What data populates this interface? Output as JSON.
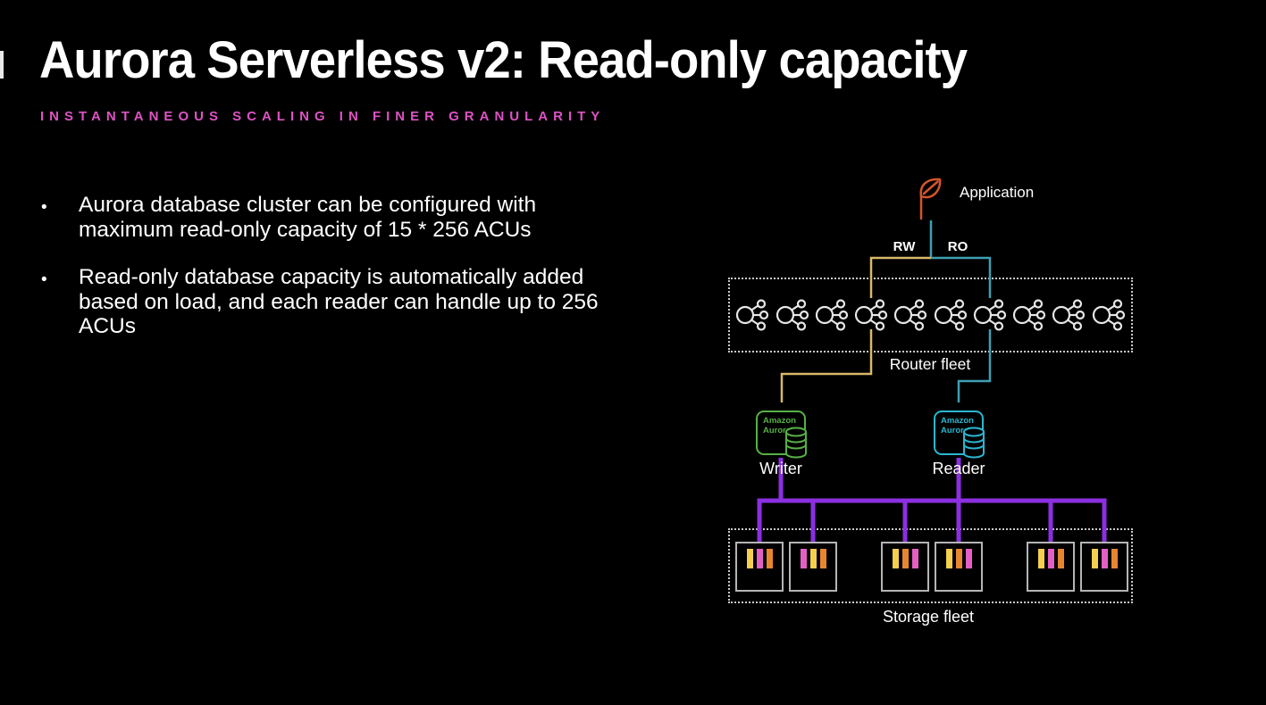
{
  "slide": {
    "title": "Aurora Serverless v2: Read-only capacity",
    "subtitle": "INSTANTANEOUS SCALING IN FINER GRANULARITY",
    "bullets": [
      "Aurora database cluster can be configured with maximum read-only capacity of 15 * 256 ACUs",
      "Read-only database capacity is automatically added based on load, and each reader can handle up to 256 ACUs"
    ],
    "bullet_marker": "•"
  },
  "diagram": {
    "application_label": "Application",
    "rw_label": "RW",
    "ro_label": "RO",
    "router_fleet": {
      "label": "Router fleet",
      "node_count": 10
    },
    "writer": {
      "icon_line1": "Amazon",
      "icon_line2": "Aurora",
      "label": "Writer"
    },
    "reader": {
      "icon_line1": "Amazon",
      "icon_line2": "Aurora",
      "label": "Reader"
    },
    "storage_fleet": {
      "label": "Storage fleet",
      "nodes": [
        {
          "bars": [
            "yellow",
            "pink",
            "orange"
          ]
        },
        {
          "bars": [
            "pink",
            "yellow",
            "orange"
          ]
        },
        {
          "bars": [
            "yellow",
            "orange",
            "pink"
          ]
        },
        {
          "bars": [
            "yellow",
            "orange",
            "pink"
          ]
        },
        {
          "bars": [
            "yellow",
            "pink",
            "orange"
          ]
        },
        {
          "bars": [
            "yellow",
            "pink",
            "orange"
          ]
        }
      ]
    },
    "colors": {
      "rw_wire": "#d8b86a",
      "ro_wire": "#3e9fb3",
      "storage_wire": "#8b2fe0",
      "writer_accent": "#57b046",
      "reader_accent": "#2bb6d0",
      "bar_yellow": "#f5cf4d",
      "bar_pink": "#e45fc4",
      "bar_orange": "#e8862f",
      "leaf": "#d4552b",
      "subtitle": "#de53c3",
      "node_icon": "#e6e6e6",
      "dotted_border": "#c9c9c9",
      "square_border": "#b5b5b5",
      "text": "#ffffff"
    }
  }
}
